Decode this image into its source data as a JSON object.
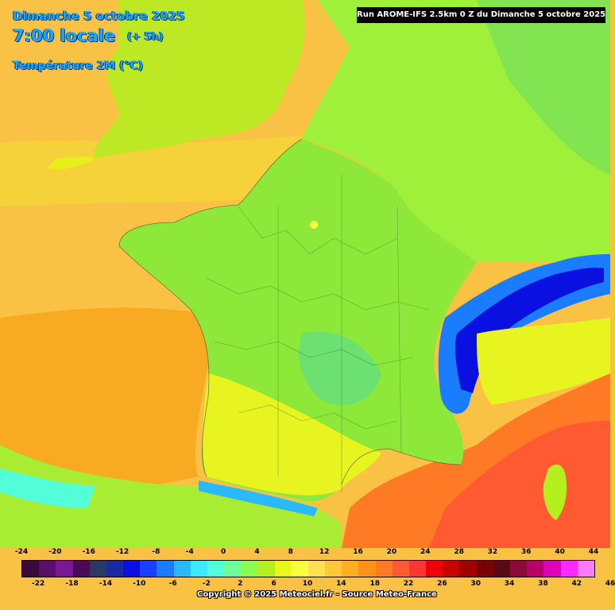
{
  "header": {
    "date": "Dimanche 5 octobre 2025",
    "time": "7:00 locale",
    "offset": "(+ 5h)",
    "parameter": "Température 2M (°C)"
  },
  "run_label": "Run AROME-IFS 2.5km 0 Z du Dimanche 5 octobre 2025",
  "legend": {
    "top_labels": [
      "-24",
      "-20",
      "-16",
      "-12",
      "-8",
      "-4",
      "0",
      "4",
      "8",
      "12",
      "16",
      "20",
      "24",
      "28",
      "32",
      "36",
      "40",
      "44"
    ],
    "bottom_labels": [
      "-22",
      "-18",
      "-14",
      "-10",
      "-6",
      "-2",
      "2",
      "6",
      "10",
      "14",
      "18",
      "22",
      "26",
      "30",
      "34",
      "38",
      "42",
      "46"
    ],
    "colors": [
      "#3a0a3c",
      "#58106a",
      "#7a1698",
      "#4a0a5a",
      "#283a62",
      "#1a2aa0",
      "#0a10e0",
      "#1a40ff",
      "#1a7cff",
      "#2ab8ff",
      "#3ee8ff",
      "#52ffd8",
      "#6cff9a",
      "#8aff52",
      "#b4f020",
      "#e6f81c",
      "#f8ff3c",
      "#ffe050",
      "#ffc838",
      "#ffb020",
      "#ff9218",
      "#ff7a24",
      "#ff5a32",
      "#ff3434",
      "#f00008",
      "#c80000",
      "#a00000",
      "#7a0000",
      "#5a0a14",
      "#8a0a3a",
      "#b8006a",
      "#e000b8",
      "#ff2aff",
      "#ff7aff"
    ]
  },
  "copyright": "Copyright © 2025 Meteociel.fr - Source Meteo-France",
  "colors": {
    "sea_warm": "#f9c245",
    "sea_hot": "#ff6a2a",
    "land_green": "#96ec34",
    "land_yellow": "#ecf51e",
    "alps": "#1a3ae0",
    "title_blue": "#18a8ff"
  }
}
